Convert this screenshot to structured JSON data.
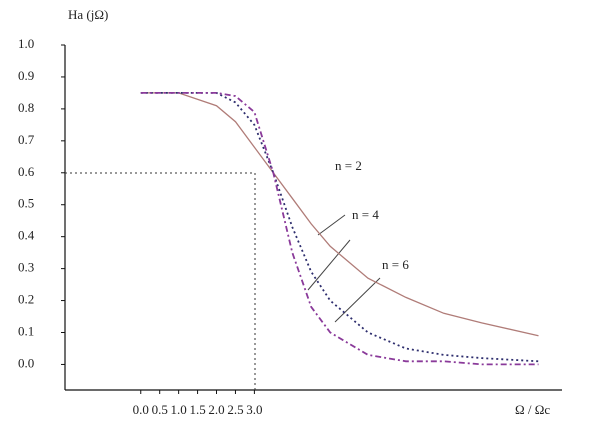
{
  "chart_data": {
    "type": "line",
    "title": "Ha (jΩ)",
    "x_label": "Ω / Ωc",
    "x": [
      0,
      1,
      2,
      2.5,
      3,
      3.5,
      4,
      4.5,
      5,
      6,
      7,
      8,
      9,
      10.5
    ],
    "series": [
      {
        "name": "n = 2",
        "color": "#b07c78",
        "values": [
          0.85,
          0.85,
          0.81,
          0.76,
          0.68,
          0.6,
          0.52,
          0.44,
          0.37,
          0.27,
          0.21,
          0.16,
          0.13,
          0.09
        ]
      },
      {
        "name": "n = 4",
        "color": "#2e2e6e",
        "values": [
          0.85,
          0.85,
          0.85,
          0.82,
          0.75,
          0.6,
          0.43,
          0.29,
          0.2,
          0.1,
          0.05,
          0.03,
          0.02,
          0.01
        ]
      },
      {
        "name": "n = 6",
        "color": "#8a3a9a",
        "values": [
          0.85,
          0.85,
          0.85,
          0.84,
          0.79,
          0.6,
          0.35,
          0.18,
          0.1,
          0.03,
          0.01,
          0.01,
          0,
          0
        ]
      }
    ],
    "xlim": [
      -2,
      11.2
    ],
    "ylim": [
      -0.08,
      1.0
    ],
    "xticks": [
      {
        "value": 0,
        "label": "0.0"
      },
      0.5,
      {
        "value": 1,
        "label": "1.0"
      },
      1.5,
      {
        "value": 2,
        "label": "2.0"
      },
      2.5,
      {
        "value": 3,
        "label": "3.0"
      }
    ],
    "yticks": [
      {
        "value": 0,
        "label": "0.0"
      },
      0.1,
      0.2,
      0.3,
      0.4,
      0.5,
      0.6,
      0.7,
      0.8,
      0.9,
      {
        "value": 1,
        "label": "1.0"
      }
    ]
  }
}
